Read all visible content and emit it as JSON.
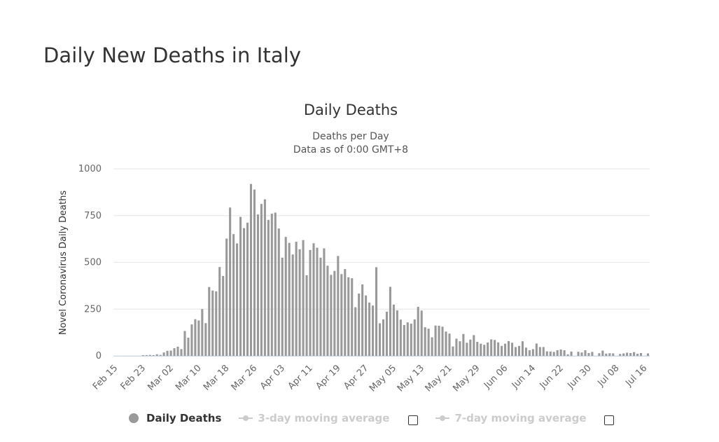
{
  "page": {
    "title": "Daily New Deaths in Italy"
  },
  "colors": {
    "bar": "#999999",
    "grid": "#e6e6e6",
    "text": "#333333",
    "axis_text": "#666666",
    "inactive": "#cccccc"
  },
  "legend": {
    "series_label": "Daily Deaths",
    "ma3_label": "3-day moving average",
    "ma7_label": "7-day moving average"
  },
  "chart_data": {
    "type": "bar",
    "title": "Daily Deaths",
    "subtitle_line1": "Deaths per Day",
    "subtitle_line2": "Data as of 0:00 GMT+8",
    "xlabel": "",
    "ylabel": "Novel Coronavirus Daily Deaths",
    "ylim": [
      0,
      1000
    ],
    "yticks": [
      0,
      250,
      500,
      750,
      1000
    ],
    "grid": true,
    "start_date": "Feb 15",
    "xtick_labels": [
      "Feb 15",
      "Feb 23",
      "Mar 02",
      "Mar 10",
      "Mar 18",
      "Mar 26",
      "Apr 03",
      "Apr 11",
      "Apr 19",
      "Apr 27",
      "May 05",
      "May 13",
      "May 21",
      "May 29",
      "Jun 06",
      "Jun 14",
      "Jun 22",
      "Jun 30",
      "Jul 08",
      "Jul 16"
    ],
    "xtick_step_days": 8,
    "values": [
      0,
      0,
      0,
      0,
      0,
      0,
      0,
      0,
      1,
      2,
      5,
      4,
      8,
      5,
      18,
      27,
      28,
      41,
      49,
      36,
      133,
      97,
      168,
      196,
      189,
      250,
      175,
      368,
      349,
      345,
      475,
      427,
      627,
      793,
      651,
      601,
      743,
      683,
      712,
      919,
      889,
      756,
      812,
      837,
      727,
      760,
      766,
      681,
      525,
      636,
      604,
      542,
      610,
      570,
      619,
      431,
      566,
      602,
      578,
      525,
      575,
      482,
      433,
      454,
      534,
      437,
      464,
      420,
      415,
      260,
      333,
      382,
      323,
      285,
      269,
      474,
      174,
      195,
      236,
      369,
      274,
      243,
      194,
      165,
      179,
      172,
      195,
      262,
      242,
      153,
      145,
      99,
      162,
      161,
      156,
      130,
      119,
      50,
      92,
      78,
      117,
      70,
      87,
      111,
      75,
      65,
      59,
      71,
      88,
      85,
      72,
      53,
      65,
      79,
      70,
      47,
      53,
      78,
      44,
      30,
      36,
      66,
      47,
      47,
      24,
      23,
      21,
      30,
      34,
      30,
      8,
      23,
      0,
      22,
      18,
      30,
      15,
      21,
      0,
      14,
      28,
      12,
      14,
      13,
      0,
      10,
      13,
      17,
      15,
      20,
      11,
      15,
      0,
      13
    ]
  }
}
